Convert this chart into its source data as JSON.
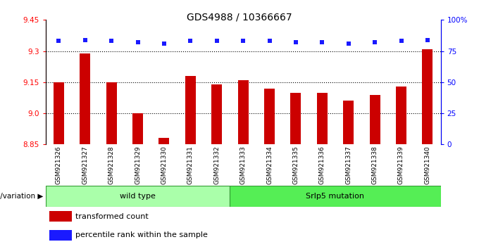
{
  "title": "GDS4988 / 10366667",
  "samples": [
    "GSM921326",
    "GSM921327",
    "GSM921328",
    "GSM921329",
    "GSM921330",
    "GSM921331",
    "GSM921332",
    "GSM921333",
    "GSM921334",
    "GSM921335",
    "GSM921336",
    "GSM921337",
    "GSM921338",
    "GSM921339",
    "GSM921340"
  ],
  "bar_values": [
    9.15,
    9.29,
    9.15,
    9.0,
    8.88,
    9.18,
    9.14,
    9.16,
    9.12,
    9.1,
    9.1,
    9.06,
    9.09,
    9.13,
    9.31
  ],
  "percentile_values": [
    83,
    84,
    83,
    82,
    81,
    83,
    83,
    83,
    83,
    82,
    82,
    81,
    82,
    83,
    84
  ],
  "bar_color": "#cc0000",
  "dot_color": "#1a1aff",
  "ylim_left": [
    8.85,
    9.45
  ],
  "ylim_right": [
    0,
    100
  ],
  "yticks_left": [
    8.85,
    9.0,
    9.15,
    9.3,
    9.45
  ],
  "yticks_right": [
    0,
    25,
    50,
    75,
    100
  ],
  "yticklabels_right": [
    "0",
    "25",
    "50",
    "75",
    "100%"
  ],
  "grid_values": [
    9.0,
    9.15,
    9.3
  ],
  "wt_count": 7,
  "mut_count": 8,
  "wt_color": "#aaffaa",
  "mut_color": "#55ee55",
  "border_color": "#339933",
  "legend_bar_label": "transformed count",
  "legend_dot_label": "percentile rank within the sample",
  "genotype_label": "genotype/variation",
  "bar_width": 0.4,
  "title_fontsize": 10,
  "tick_fontsize": 7.5,
  "xtick_fontsize": 6.5,
  "label_fontsize": 8
}
